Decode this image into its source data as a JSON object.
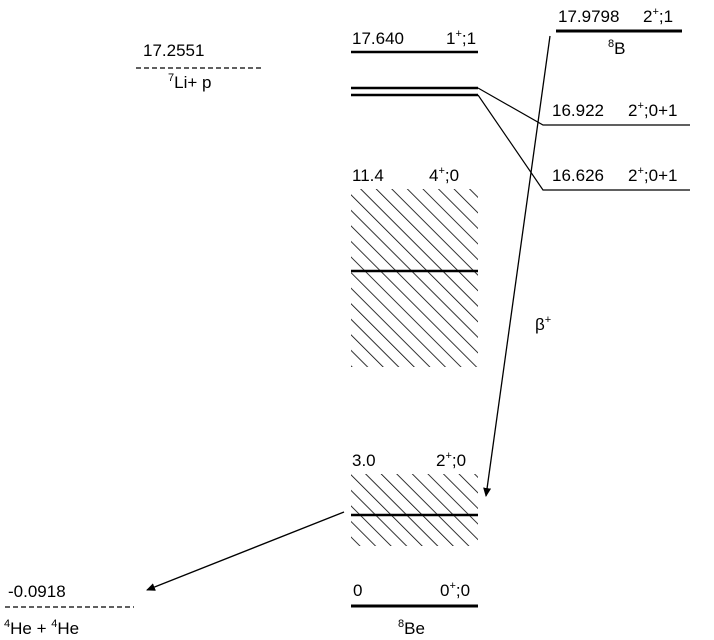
{
  "colors": {
    "ink": "#000000",
    "background": "#ffffff"
  },
  "be8": {
    "nucleus_label": {
      "sup": "8",
      "base": "Be"
    },
    "levels": [
      {
        "energy": "17.640",
        "spin": {
          "base": "1",
          "sup": "+",
          "rest": ";1"
        },
        "style": "sharp"
      },
      {
        "energy": "16.922",
        "spin": {
          "base": "2",
          "sup": "+",
          "rest": ";0+1"
        },
        "style": "sharp"
      },
      {
        "energy": "16.626",
        "spin": {
          "base": "2",
          "sup": "+",
          "rest": ";0+1"
        },
        "style": "sharp"
      },
      {
        "energy": "11.4",
        "spin": {
          "base": "4",
          "sup": "+",
          "rest": ";0"
        },
        "style": "broad"
      },
      {
        "energy": "3.0",
        "spin": {
          "base": "2",
          "sup": "+",
          "rest": ";0"
        },
        "style": "broad"
      },
      {
        "energy": "0",
        "spin": {
          "base": "0",
          "sup": "+",
          "rest": ";0"
        },
        "style": "sharp"
      }
    ]
  },
  "b8": {
    "nucleus_label": {
      "sup": "8",
      "base": "B"
    },
    "energy": "17.9798",
    "spin": {
      "base": "2",
      "sup": "+",
      "rest": ";1"
    }
  },
  "thresholds": {
    "li7p": {
      "energy": "17.2551",
      "label": {
        "sup": "7",
        "base": "Li+ p"
      }
    },
    "he4he4": {
      "energy": "-0.0918",
      "label": {
        "sup1": "4",
        "base1": "He + ",
        "sup2": "4",
        "base2": "He"
      }
    }
  },
  "decay": {
    "label": "β",
    "sup": "+"
  }
}
